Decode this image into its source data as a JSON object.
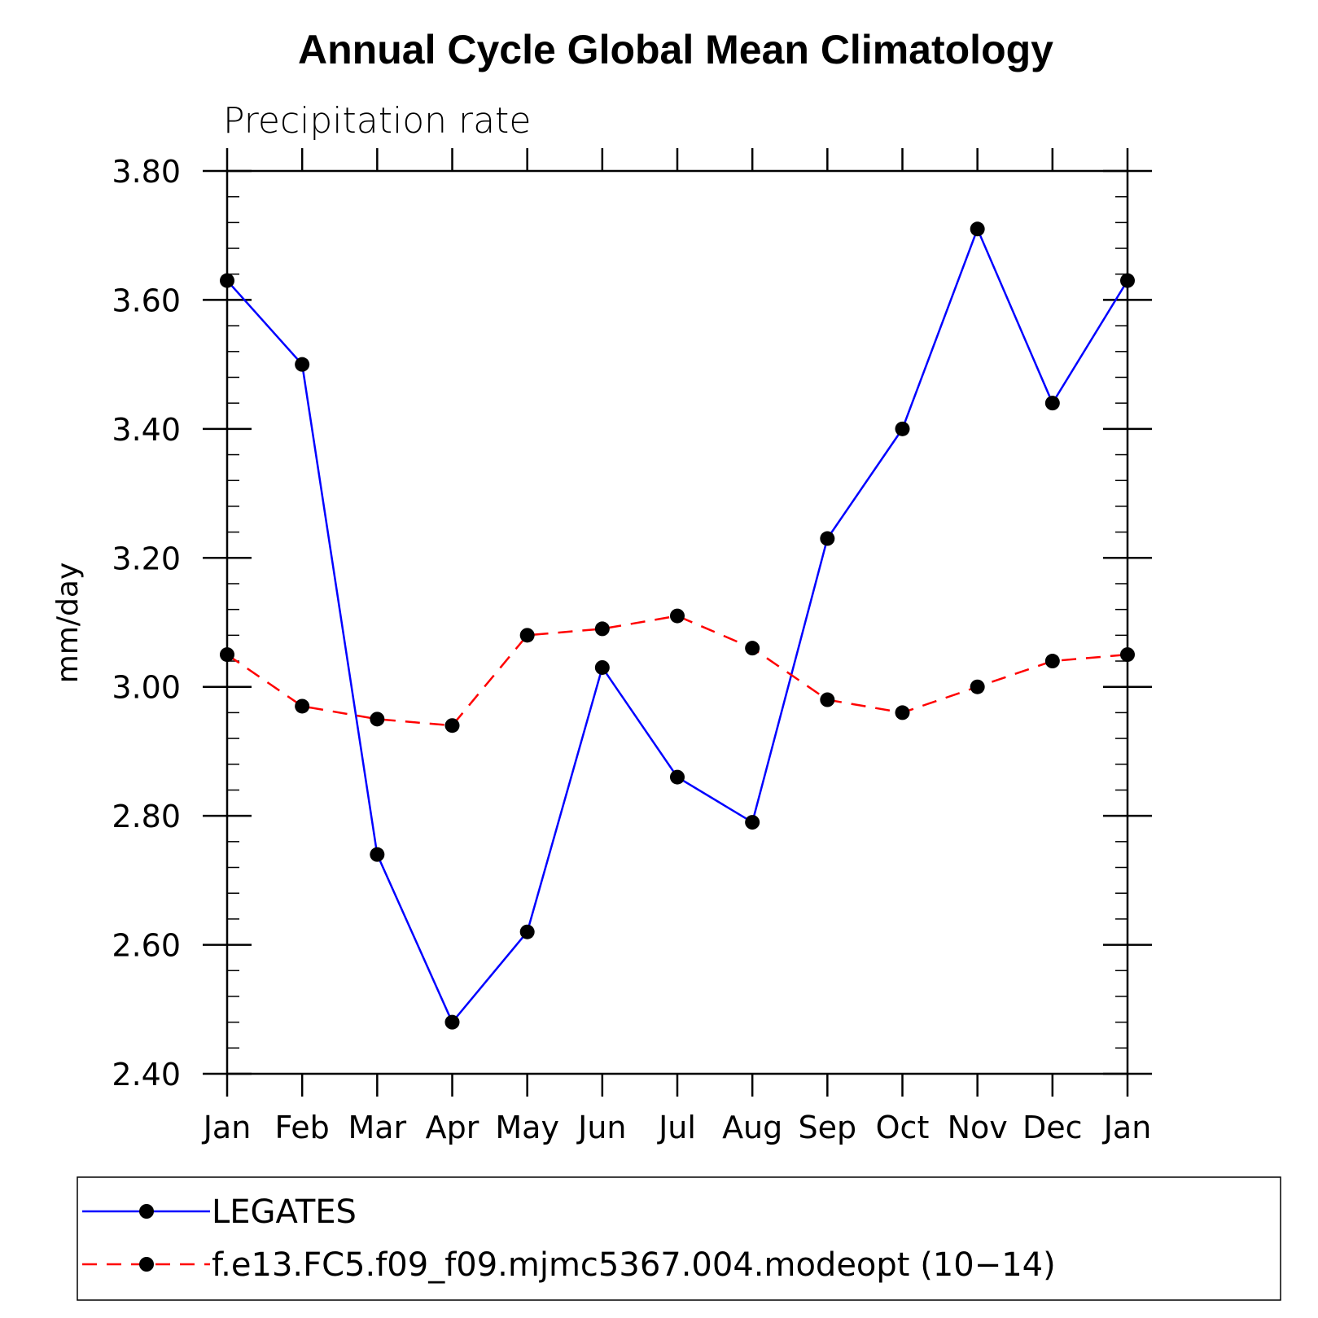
{
  "chart_data": {
    "type": "line",
    "title": "Annual Cycle Global Mean Climatology",
    "subtitle": "Precipitation rate",
    "xlabel": "",
    "ylabel": "mm/day",
    "categories": [
      "Jan",
      "Feb",
      "Mar",
      "Apr",
      "May",
      "Jun",
      "Jul",
      "Aug",
      "Sep",
      "Oct",
      "Nov",
      "Dec",
      "Jan"
    ],
    "ylim": [
      2.4,
      3.8
    ],
    "y_ticks": [
      "2.40",
      "2.60",
      "2.80",
      "3.00",
      "3.20",
      "3.40",
      "3.60",
      "3.80"
    ],
    "grid": false,
    "legend_position": "bottom",
    "series": [
      {
        "name": "LEGATES",
        "color": "#0000ff",
        "line_style": "solid",
        "marker": "filled-circle",
        "values": [
          3.63,
          3.5,
          2.74,
          2.48,
          2.62,
          3.03,
          2.86,
          2.79,
          3.23,
          3.4,
          3.71,
          3.44,
          3.63
        ]
      },
      {
        "name": "f.e13.FC5.f09_f09.mjmc5367.004.modeopt (10−14)",
        "color": "#ff0000",
        "line_style": "dashed",
        "marker": "filled-circle",
        "values": [
          3.05,
          2.97,
          2.95,
          2.94,
          3.08,
          3.09,
          3.11,
          3.06,
          2.98,
          2.96,
          3.0,
          3.04,
          3.05
        ]
      }
    ]
  }
}
